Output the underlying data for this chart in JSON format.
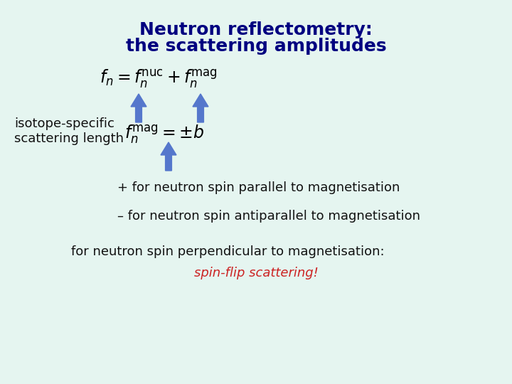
{
  "background_color": "#e5f5f0",
  "title_line1": "Neutron reflectometry:",
  "title_line2": "the scattering amplitudes",
  "title_color": "#000080",
  "title_fontsize": 18,
  "formula1": "$f_n = f_n^{\\mathrm{nuc}} + f_n^{\\mathrm{mag}}$",
  "formula2": "$f_n^{\\mathrm{mag}} = {\\pm}b$",
  "formula_color": "#000000",
  "formula_fontsize": 17,
  "label_isotope": "isotope-specific\nscattering length",
  "label_color": "#111111",
  "label_fontsize": 13,
  "arrow_color": "#5577CC",
  "text1": "+ for neutron spin parallel to magnetisation",
  "text2": "– for neutron spin antiparallel to magnetisation",
  "text3": "for neutron spin perpendicular to magnetisation:",
  "text4": "spin-flip scattering!",
  "text_color": "#111111",
  "text_fontsize": 13,
  "text4_color": "#CC2222",
  "text4_fontsize": 13
}
